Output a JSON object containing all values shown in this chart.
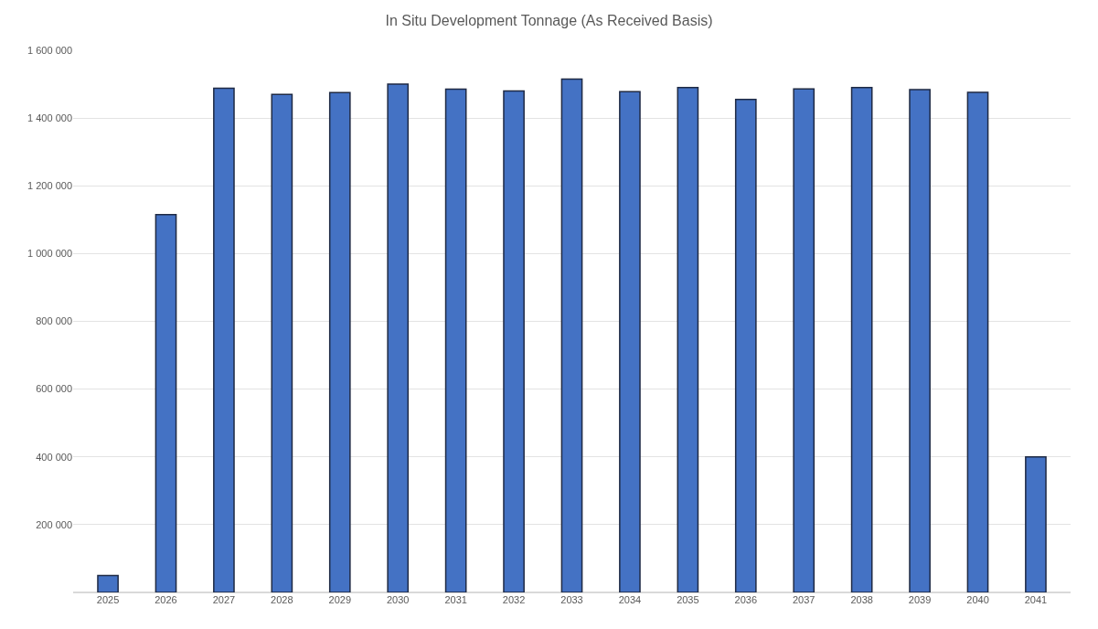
{
  "chart_data": {
    "type": "bar",
    "title": "In Situ Development Tonnage (As Received Basis)",
    "categories": [
      "2025",
      "2026",
      "2027",
      "2028",
      "2029",
      "2030",
      "2031",
      "2032",
      "2033",
      "2034",
      "2035",
      "2036",
      "2037",
      "2038",
      "2039",
      "2040",
      "2041"
    ],
    "values": [
      50000,
      1115000,
      1488000,
      1470000,
      1475000,
      1500000,
      1485000,
      1480000,
      1515000,
      1478000,
      1490000,
      1455000,
      1486000,
      1490000,
      1484000,
      1476000,
      400000
    ],
    "color": "#4472c4",
    "ylim": [
      0,
      1600000
    ],
    "yticks": [
      {
        "value": 200000,
        "label": "200 000"
      },
      {
        "value": 400000,
        "label": "400 000"
      },
      {
        "value": 600000,
        "label": "600 000"
      },
      {
        "value": 800000,
        "label": "800 000"
      },
      {
        "value": 1000000,
        "label": "1 000 000"
      },
      {
        "value": 1200000,
        "label": "1 200 000"
      },
      {
        "value": 1400000,
        "label": "1 400 000"
      },
      {
        "value": 1600000,
        "label": "1 600 000"
      }
    ],
    "grid": "y"
  }
}
